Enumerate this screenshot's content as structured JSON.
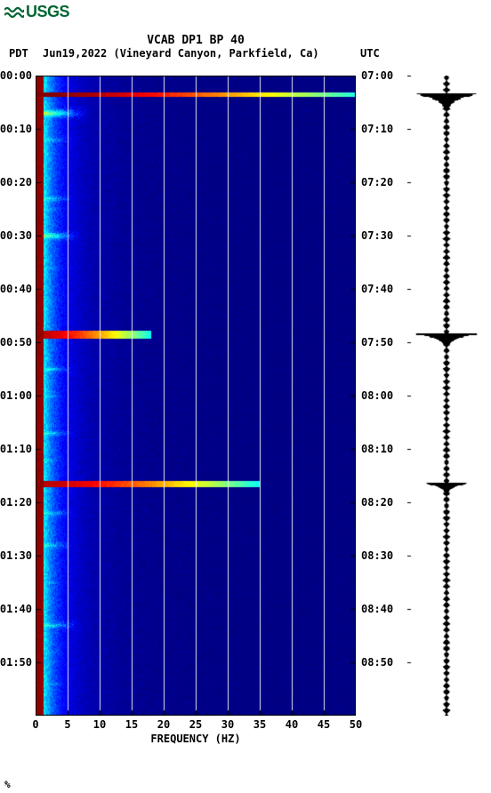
{
  "logo": {
    "text": "USGS",
    "color": "#006633"
  },
  "title": "VCAB DP1 BP 40",
  "header": {
    "tz_left": "PDT",
    "date_loc": "Jun19,2022 (Vineyard Canyon, Parkfield, Ca)",
    "tz_right": "UTC"
  },
  "x_axis": {
    "label": "FREQUENCY (HZ)",
    "ticks": [
      0,
      5,
      10,
      15,
      20,
      25,
      30,
      35,
      40,
      45,
      50
    ],
    "min": 0,
    "max": 50
  },
  "y_axis": {
    "min_min": 0,
    "max_min": 120,
    "left_ticks": [
      "00:00",
      "00:10",
      "00:20",
      "00:30",
      "00:40",
      "00:50",
      "01:00",
      "01:10",
      "01:20",
      "01:30",
      "01:40",
      "01:50"
    ],
    "right_ticks": [
      "07:00",
      "07:10",
      "07:20",
      "07:30",
      "07:40",
      "07:50",
      "08:00",
      "08:10",
      "08:20",
      "08:30",
      "08:40",
      "08:50"
    ],
    "tick_positions_min": [
      0,
      10,
      20,
      30,
      40,
      50,
      60,
      70,
      80,
      90,
      100,
      110
    ]
  },
  "spectrogram": {
    "colormap": [
      "#00007f",
      "#0000ff",
      "#007fff",
      "#00ffff",
      "#7fff7f",
      "#ffff00",
      "#ff7f00",
      "#ff0000",
      "#7f0000"
    ],
    "event_bands": [
      {
        "time_min": 3.5,
        "width_min": 1.0,
        "max_freq": 50,
        "intensity": 1.0
      },
      {
        "time_min": 48.5,
        "width_min": 1.5,
        "max_freq": 18,
        "intensity": 0.95
      },
      {
        "time_min": 76.5,
        "width_min": 1.2,
        "max_freq": 35,
        "intensity": 0.95
      }
    ],
    "minor_bursts": [
      {
        "time_min": 7,
        "intensity": 0.7,
        "max_freq": 8
      },
      {
        "time_min": 12,
        "intensity": 0.5,
        "max_freq": 6
      },
      {
        "time_min": 23,
        "intensity": 0.55,
        "max_freq": 6
      },
      {
        "time_min": 25,
        "intensity": 0.5,
        "max_freq": 5
      },
      {
        "time_min": 30,
        "intensity": 0.65,
        "max_freq": 7
      },
      {
        "time_min": 36,
        "intensity": 0.5,
        "max_freq": 5
      },
      {
        "time_min": 42,
        "intensity": 0.45,
        "max_freq": 5
      },
      {
        "time_min": 55,
        "intensity": 0.55,
        "max_freq": 6
      },
      {
        "time_min": 60,
        "intensity": 0.5,
        "max_freq": 5
      },
      {
        "time_min": 67,
        "intensity": 0.55,
        "max_freq": 6
      },
      {
        "time_min": 72,
        "intensity": 0.5,
        "max_freq": 5
      },
      {
        "time_min": 82,
        "intensity": 0.55,
        "max_freq": 6
      },
      {
        "time_min": 88,
        "intensity": 0.55,
        "max_freq": 6
      },
      {
        "time_min": 95,
        "intensity": 0.5,
        "max_freq": 5
      },
      {
        "time_min": 103,
        "intensity": 0.55,
        "max_freq": 7
      },
      {
        "time_min": 108,
        "intensity": 0.5,
        "max_freq": 5
      },
      {
        "time_min": 114,
        "intensity": 0.45,
        "max_freq": 5
      }
    ]
  },
  "waveform": {
    "noise_amp": 0.1,
    "events": [
      {
        "time_min": 3.5,
        "amp": 1.0,
        "dur": 2.5
      },
      {
        "time_min": 48.5,
        "amp": 1.0,
        "dur": 2.0
      },
      {
        "time_min": 76.5,
        "amp": 0.7,
        "dur": 1.6
      }
    ]
  },
  "footer": "%"
}
